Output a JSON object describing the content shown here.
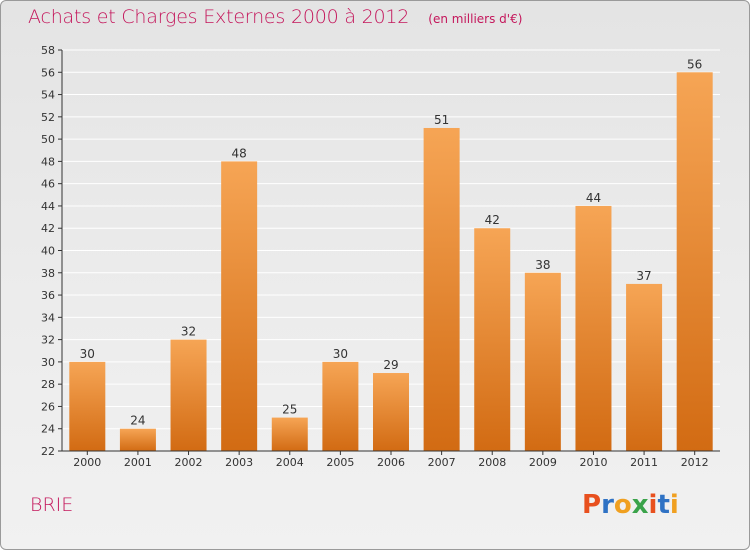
{
  "header": {
    "title": "Achats et Charges Externes 2000 à 2012",
    "unit": "(en milliers d'€)"
  },
  "footer": {
    "commune": "BRIE",
    "logo_text": "Proxiti",
    "logo_colors": [
      "#e8501e",
      "#2f72c4",
      "#f0a020",
      "#3aa34a",
      "#e8501e",
      "#2f72c4",
      "#f0a020"
    ]
  },
  "colors": {
    "accent": "#c4165b",
    "bar_top": "#f6a555",
    "bar_bottom": "#d26b13",
    "grid": "#ffffff",
    "axis": "#333333"
  },
  "chart_data": {
    "type": "bar",
    "title": "Achats et Charges Externes 2000 à 2012",
    "subtitle": "(en milliers d'€)",
    "xlabel": "",
    "ylabel": "",
    "categories": [
      "2000",
      "2001",
      "2002",
      "2003",
      "2004",
      "2005",
      "2006",
      "2007",
      "2008",
      "2009",
      "2010",
      "2011",
      "2012"
    ],
    "values": [
      30,
      24,
      32,
      48,
      25,
      30,
      29,
      51,
      42,
      38,
      44,
      37,
      56
    ],
    "ylim": [
      22,
      58
    ],
    "ytick_step": 2,
    "grid": true,
    "legend": "none"
  }
}
